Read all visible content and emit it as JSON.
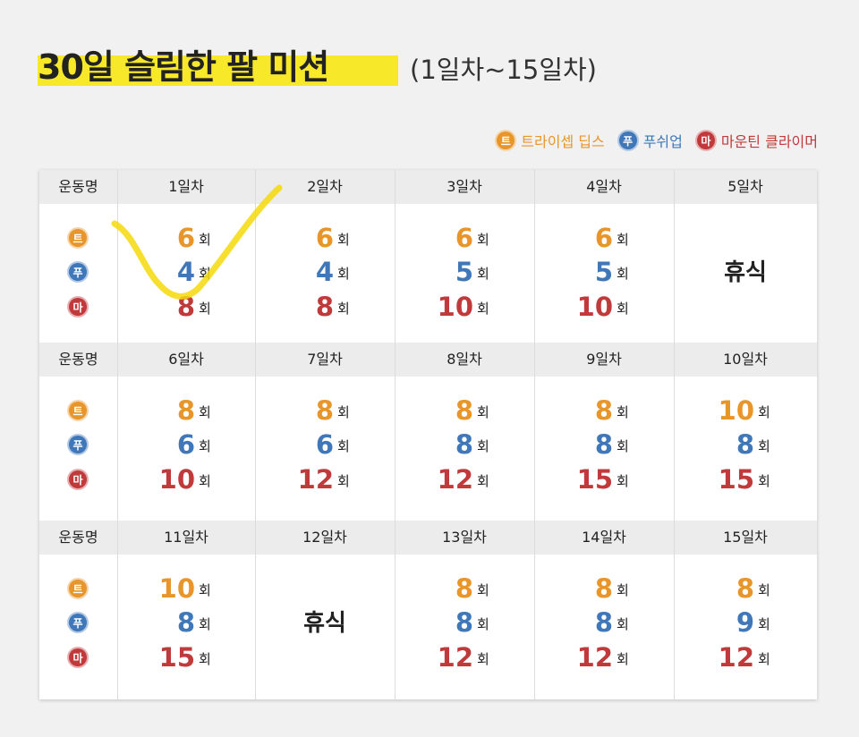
{
  "header": {
    "title": "30일 슬림한 팔 미션",
    "subtitle": "(1일차~15일차)"
  },
  "legend": [
    {
      "icon": "트",
      "name": "트라이셉 딥스",
      "color": "#e8952a"
    },
    {
      "icon": "푸",
      "name": "푸쉬업",
      "color": "#3f77b8"
    },
    {
      "icon": "마",
      "name": "마운틴 클라이머",
      "color": "#c0393b"
    }
  ],
  "unit": "회",
  "table": {
    "blocks": [
      {
        "header_label": "운동명",
        "days": [
          {
            "label": "1일차",
            "counts": [
              6,
              4,
              8
            ]
          },
          {
            "label": "2일차",
            "counts": [
              6,
              4,
              8
            ]
          },
          {
            "label": "3일차",
            "counts": [
              6,
              5,
              10
            ]
          },
          {
            "label": "4일차",
            "counts": [
              6,
              5,
              10
            ]
          },
          {
            "label": "5일차",
            "rest": "휴식"
          }
        ]
      },
      {
        "header_label": "운동명",
        "days": [
          {
            "label": "6일차",
            "counts": [
              8,
              6,
              10
            ]
          },
          {
            "label": "7일차",
            "counts": [
              8,
              6,
              12
            ]
          },
          {
            "label": "8일차",
            "counts": [
              8,
              8,
              12
            ]
          },
          {
            "label": "9일차",
            "counts": [
              8,
              8,
              15
            ]
          },
          {
            "label": "10일차",
            "counts": [
              10,
              8,
              15
            ]
          }
        ]
      },
      {
        "header_label": "운동명",
        "days": [
          {
            "label": "11일차",
            "counts": [
              10,
              8,
              15
            ]
          },
          {
            "label": "12일차",
            "rest": "휴식"
          },
          {
            "label": "13일차",
            "counts": [
              8,
              8,
              12
            ]
          },
          {
            "label": "14일차",
            "counts": [
              8,
              8,
              12
            ]
          },
          {
            "label": "15일차",
            "counts": [
              8,
              9,
              12
            ]
          }
        ]
      }
    ]
  }
}
